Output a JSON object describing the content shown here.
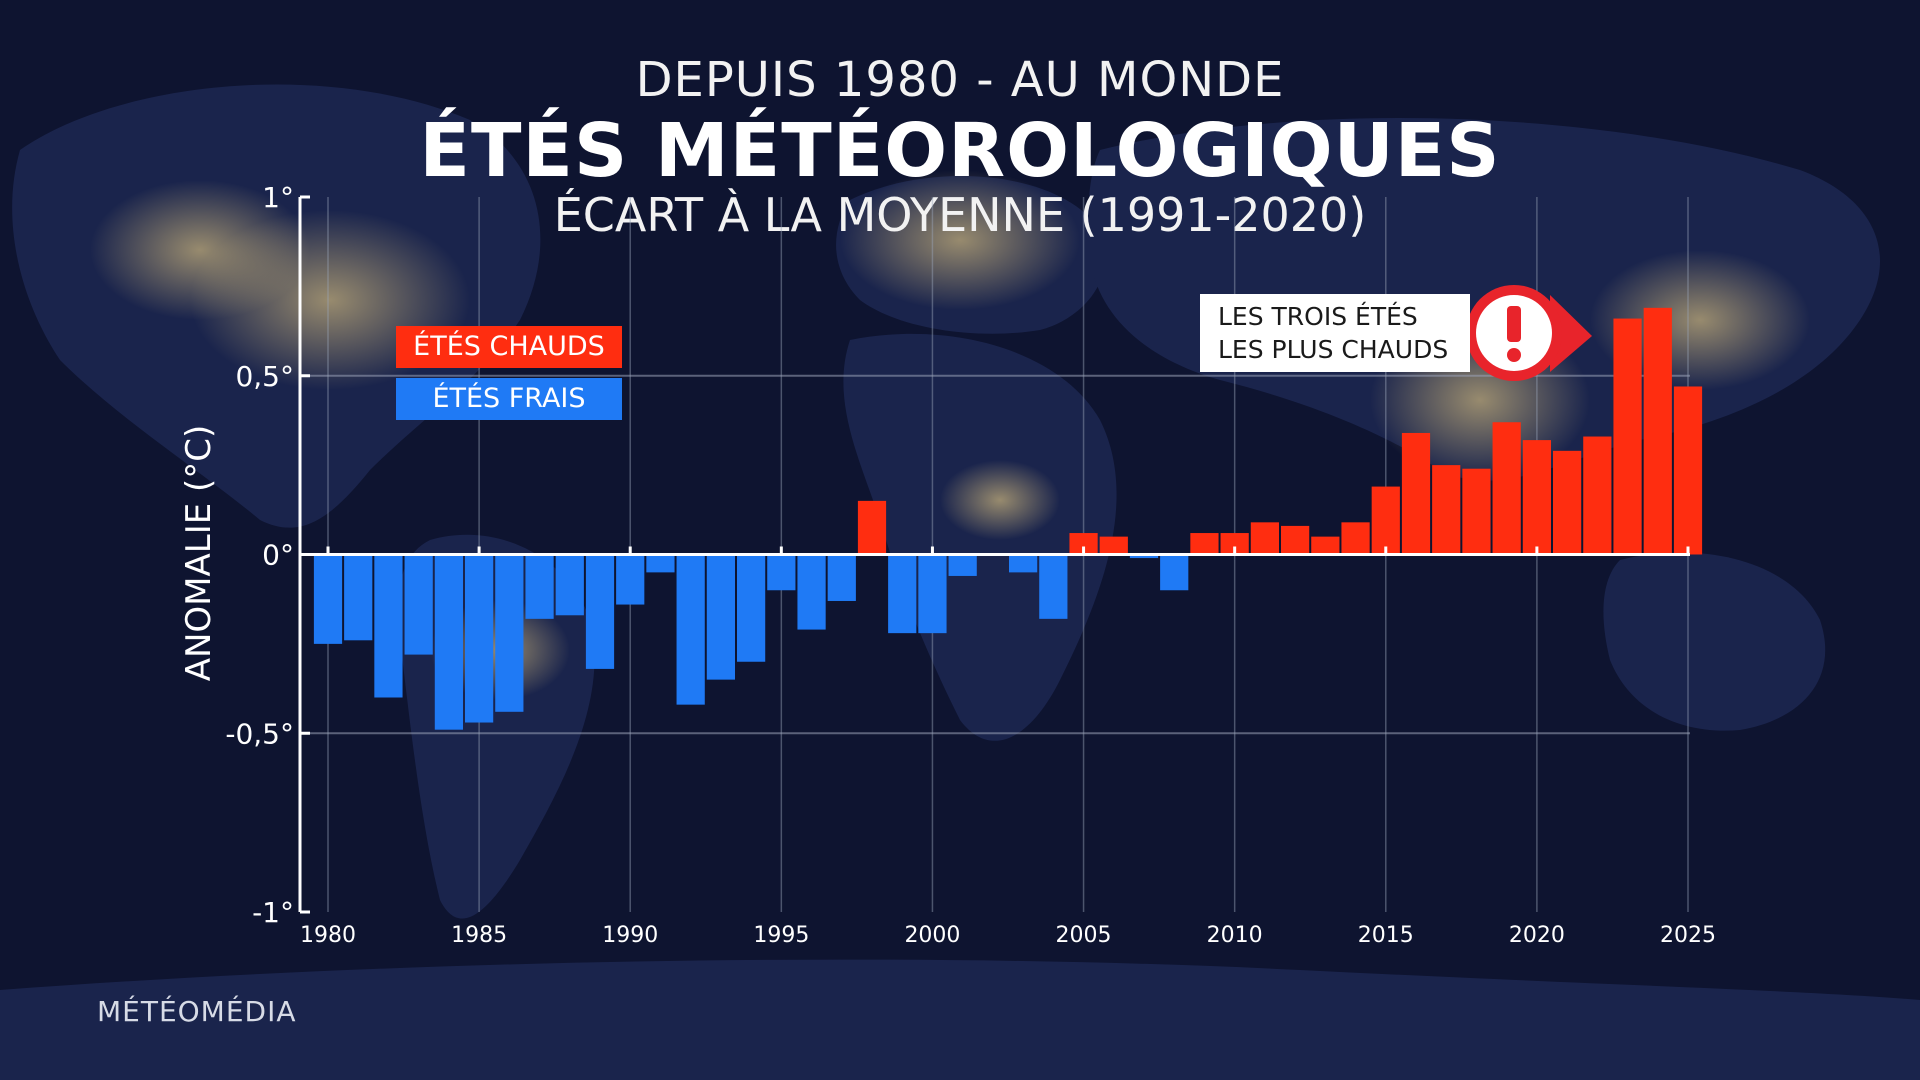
{
  "header": {
    "line1": "DEPUIS 1980 - AU MONDE",
    "line2": "ÉTÉS MÉTÉOROLOGIQUES",
    "line3": "ÉCART À LA MOYENNE (1991-2020)"
  },
  "legend": {
    "hot_label": "ÉTÉS CHAUDS",
    "cold_label": "ÉTÉS FRAIS"
  },
  "callout": {
    "line1": "LES TROIS ÉTÉS",
    "line2": "LES PLUS CHAUDS",
    "icon": "exclamation-icon"
  },
  "brand": "MÉTÉOMÉDIA",
  "colors": {
    "hot": "#ff2d10",
    "cold": "#1f7af5",
    "alert": "#e8242b"
  },
  "chart_data": {
    "type": "bar",
    "title": "ÉTÉS MÉTÉOROLOGIQUES",
    "ylabel": "ANOMALIE (°C)",
    "xlabel": "",
    "ylim": [
      -1,
      1
    ],
    "xlim": [
      1980,
      2025
    ],
    "y_ticks": [
      {
        "value": 1,
        "label": "1°"
      },
      {
        "value": 0.5,
        "label": "0,5°"
      },
      {
        "value": 0,
        "label": "0°"
      },
      {
        "value": -0.5,
        "label": "-0,5°"
      },
      {
        "value": -1,
        "label": "-1°"
      }
    ],
    "x_ticks": [
      {
        "value": 1980,
        "label": "1980"
      },
      {
        "value": 1985,
        "label": "1985"
      },
      {
        "value": 1990,
        "label": "1990"
      },
      {
        "value": 1995,
        "label": "1995"
      },
      {
        "value": 2000,
        "label": "2000"
      },
      {
        "value": 2005,
        "label": "2005"
      },
      {
        "value": 2010,
        "label": "2010"
      },
      {
        "value": 2015,
        "label": "2015"
      },
      {
        "value": 2020,
        "label": "2020"
      },
      {
        "value": 2025,
        "label": "2025"
      }
    ],
    "years": [
      1980,
      1981,
      1982,
      1983,
      1984,
      1985,
      1986,
      1987,
      1988,
      1989,
      1990,
      1991,
      1992,
      1993,
      1994,
      1995,
      1996,
      1997,
      1998,
      1999,
      2000,
      2001,
      2002,
      2003,
      2004,
      2005,
      2006,
      2007,
      2008,
      2009,
      2010,
      2011,
      2012,
      2013,
      2014,
      2015,
      2016,
      2017,
      2018,
      2019,
      2020,
      2021,
      2022,
      2023,
      2024,
      2025
    ],
    "values": [
      -0.25,
      -0.24,
      -0.4,
      -0.28,
      -0.49,
      -0.47,
      -0.44,
      -0.18,
      -0.17,
      -0.32,
      -0.14,
      -0.05,
      -0.42,
      -0.35,
      -0.3,
      -0.1,
      -0.21,
      -0.13,
      0.15,
      -0.22,
      -0.22,
      -0.06,
      0.0,
      -0.05,
      -0.18,
      0.06,
      0.05,
      -0.01,
      -0.1,
      0.06,
      0.06,
      0.09,
      0.08,
      0.05,
      0.09,
      0.19,
      0.34,
      0.25,
      0.24,
      0.37,
      0.32,
      0.29,
      0.33,
      0.66,
      0.69,
      0.47
    ]
  }
}
